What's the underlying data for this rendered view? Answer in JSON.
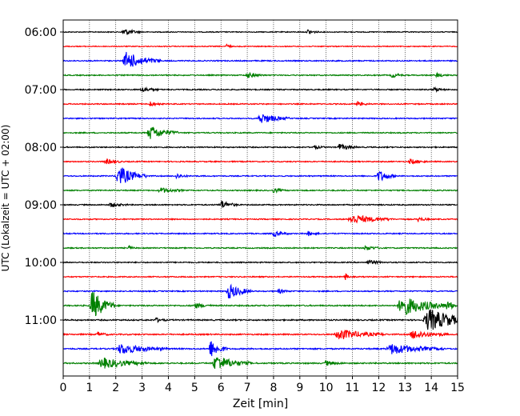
{
  "chart_data": {
    "type": "line",
    "title": "",
    "xlabel": "Zeit  [min]",
    "ylabel": "UTC (Lokalzeit = UTC + 02:00)",
    "xlim": [
      0,
      15
    ],
    "x_ticks": [
      0,
      1,
      2,
      3,
      4,
      5,
      6,
      7,
      8,
      9,
      10,
      11,
      12,
      13,
      14,
      15
    ],
    "x_tick_labels": [
      "0",
      "1",
      "2",
      "3",
      "4",
      "5",
      "6",
      "7",
      "8",
      "9",
      "10",
      "11",
      "12",
      "13",
      "14",
      "15"
    ],
    "y_tick_labels": [
      "06:00",
      "07:00",
      "08:00",
      "09:00",
      "10:00",
      "11:00"
    ],
    "y_tick_trace_index": [
      0,
      4,
      8,
      12,
      16,
      20
    ],
    "grid": "vertical-dotted",
    "trace_interval_minutes": 15,
    "colors_cycle": [
      "#000000",
      "#ff0000",
      "#0000ff",
      "#008000"
    ],
    "traces": [
      {
        "start": "06:00",
        "color": "#000000",
        "noise": 0.25,
        "events": [
          {
            "t": 2.3,
            "amp": 2.2,
            "dur": 0.3
          },
          {
            "t": 9.3,
            "amp": 1.5,
            "dur": 0.2
          }
        ]
      },
      {
        "start": "06:15",
        "color": "#ff0000",
        "noise": 0.25,
        "events": [
          {
            "t": 6.2,
            "amp": 1.5,
            "dur": 0.1
          }
        ]
      },
      {
        "start": "06:30",
        "color": "#0000ff",
        "noise": 0.3,
        "events": [
          {
            "t": 2.4,
            "amp": 5.0,
            "dur": 0.6
          }
        ]
      },
      {
        "start": "06:45",
        "color": "#008000",
        "noise": 0.3,
        "events": [
          {
            "t": 7.0,
            "amp": 1.5,
            "dur": 0.3
          },
          {
            "t": 12.5,
            "amp": 1.5,
            "dur": 0.2
          },
          {
            "t": 14.2,
            "amp": 1.3,
            "dur": 0.2
          }
        ]
      },
      {
        "start": "07:00",
        "color": "#000000",
        "noise": 0.3,
        "events": [
          {
            "t": 3.0,
            "amp": 1.5,
            "dur": 0.3
          },
          {
            "t": 14.1,
            "amp": 1.3,
            "dur": 0.2
          }
        ]
      },
      {
        "start": "07:15",
        "color": "#ff0000",
        "noise": 0.3,
        "events": [
          {
            "t": 3.3,
            "amp": 1.4,
            "dur": 0.2
          },
          {
            "t": 11.2,
            "amp": 1.3,
            "dur": 0.2
          }
        ]
      },
      {
        "start": "07:30",
        "color": "#0000ff",
        "noise": 0.3,
        "events": [
          {
            "t": 7.5,
            "amp": 3.0,
            "dur": 0.5
          }
        ]
      },
      {
        "start": "07:45",
        "color": "#008000",
        "noise": 0.3,
        "events": [
          {
            "t": 3.3,
            "amp": 4.0,
            "dur": 0.5
          }
        ]
      },
      {
        "start": "08:00",
        "color": "#000000",
        "noise": 0.3,
        "events": [
          {
            "t": 10.5,
            "amp": 1.8,
            "dur": 0.3
          },
          {
            "t": 9.5,
            "amp": 1.2,
            "dur": 0.2
          }
        ]
      },
      {
        "start": "08:15",
        "color": "#ff0000",
        "noise": 0.3,
        "events": [
          {
            "t": 1.6,
            "amp": 1.5,
            "dur": 0.3
          },
          {
            "t": 13.2,
            "amp": 1.4,
            "dur": 0.3
          }
        ]
      },
      {
        "start": "08:30",
        "color": "#0000ff",
        "noise": 0.3,
        "events": [
          {
            "t": 2.1,
            "amp": 6.0,
            "dur": 0.5
          },
          {
            "t": 4.3,
            "amp": 1.5,
            "dur": 0.2
          },
          {
            "t": 12.0,
            "amp": 3.5,
            "dur": 0.3
          }
        ]
      },
      {
        "start": "08:45",
        "color": "#008000",
        "noise": 0.3,
        "events": [
          {
            "t": 3.7,
            "amp": 1.5,
            "dur": 0.4
          },
          {
            "t": 8.0,
            "amp": 1.3,
            "dur": 0.2
          }
        ]
      },
      {
        "start": "09:00",
        "color": "#000000",
        "noise": 0.3,
        "events": [
          {
            "t": 6.0,
            "amp": 2.5,
            "dur": 0.3
          },
          {
            "t": 1.8,
            "amp": 1.3,
            "dur": 0.3
          }
        ]
      },
      {
        "start": "09:15",
        "color": "#ff0000",
        "noise": 0.3,
        "events": [
          {
            "t": 11.0,
            "amp": 2.8,
            "dur": 0.7
          },
          {
            "t": 13.5,
            "amp": 1.3,
            "dur": 0.2
          }
        ]
      },
      {
        "start": "09:30",
        "color": "#0000ff",
        "noise": 0.3,
        "events": [
          {
            "t": 8.0,
            "amp": 1.5,
            "dur": 0.3
          },
          {
            "t": 9.3,
            "amp": 1.3,
            "dur": 0.2
          }
        ]
      },
      {
        "start": "09:45",
        "color": "#008000",
        "noise": 0.3,
        "events": [
          {
            "t": 2.5,
            "amp": 1.5,
            "dur": 0.1
          },
          {
            "t": 11.5,
            "amp": 1.3,
            "dur": 0.3
          }
        ]
      },
      {
        "start": "10:00",
        "color": "#000000",
        "noise": 0.3,
        "events": [
          {
            "t": 11.6,
            "amp": 1.3,
            "dur": 0.3
          }
        ]
      },
      {
        "start": "10:15",
        "color": "#ff0000",
        "noise": 0.3,
        "events": [
          {
            "t": 10.7,
            "amp": 2.8,
            "dur": 0.1
          }
        ]
      },
      {
        "start": "10:30",
        "color": "#0000ff",
        "noise": 0.3,
        "events": [
          {
            "t": 6.3,
            "amp": 4.5,
            "dur": 0.4
          },
          {
            "t": 8.2,
            "amp": 1.3,
            "dur": 0.2
          }
        ]
      },
      {
        "start": "10:45",
        "color": "#008000",
        "noise": 0.35,
        "events": [
          {
            "t": 1.1,
            "amp": 9.0,
            "dur": 0.4
          },
          {
            "t": 5.0,
            "amp": 1.5,
            "dur": 0.3
          },
          {
            "t": 12.9,
            "amp": 5.5,
            "dur": 0.9
          },
          {
            "t": 14.6,
            "amp": 1.8,
            "dur": 0.2
          }
        ]
      },
      {
        "start": "11:00",
        "color": "#000000",
        "noise": 0.35,
        "events": [
          {
            "t": 13.9,
            "amp": 6.5,
            "dur": 0.9
          },
          {
            "t": 3.5,
            "amp": 1.3,
            "dur": 0.2
          }
        ]
      },
      {
        "start": "11:15",
        "color": "#ff0000",
        "noise": 0.35,
        "events": [
          {
            "t": 10.5,
            "amp": 3.0,
            "dur": 0.8
          },
          {
            "t": 13.3,
            "amp": 2.5,
            "dur": 0.6
          },
          {
            "t": 1.3,
            "amp": 1.3,
            "dur": 0.2
          }
        ]
      },
      {
        "start": "11:30",
        "color": "#0000ff",
        "noise": 0.35,
        "events": [
          {
            "t": 2.2,
            "amp": 3.0,
            "dur": 0.8
          },
          {
            "t": 5.6,
            "amp": 5.0,
            "dur": 0.3
          },
          {
            "t": 12.5,
            "amp": 3.0,
            "dur": 0.9
          }
        ]
      },
      {
        "start": "11:45",
        "color": "#008000",
        "noise": 0.35,
        "events": [
          {
            "t": 1.5,
            "amp": 3.0,
            "dur": 0.8
          },
          {
            "t": 5.8,
            "amp": 4.5,
            "dur": 0.6
          },
          {
            "t": 10.0,
            "amp": 1.3,
            "dur": 0.3
          }
        ]
      }
    ]
  }
}
